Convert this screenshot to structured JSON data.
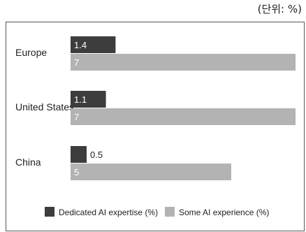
{
  "unit_label": "(단위: %)",
  "chart_data": {
    "type": "bar",
    "orientation": "horizontal",
    "categories": [
      "Europe",
      "United States",
      "China"
    ],
    "series": [
      {
        "name": "Dedicated AI expertise (%)",
        "values": [
          1.4,
          1.1,
          0.5
        ],
        "color": "#3d3d3d"
      },
      {
        "name": "Some AI experience (%)",
        "values": [
          7,
          7,
          5
        ],
        "color": "#b3b3b3"
      }
    ],
    "value_labels": [
      [
        "1.4",
        "1.1",
        "0.5"
      ],
      [
        "7",
        "7",
        "5"
      ]
    ],
    "xlim": [
      0,
      7
    ],
    "grid": false,
    "legend_position": "bottom"
  }
}
